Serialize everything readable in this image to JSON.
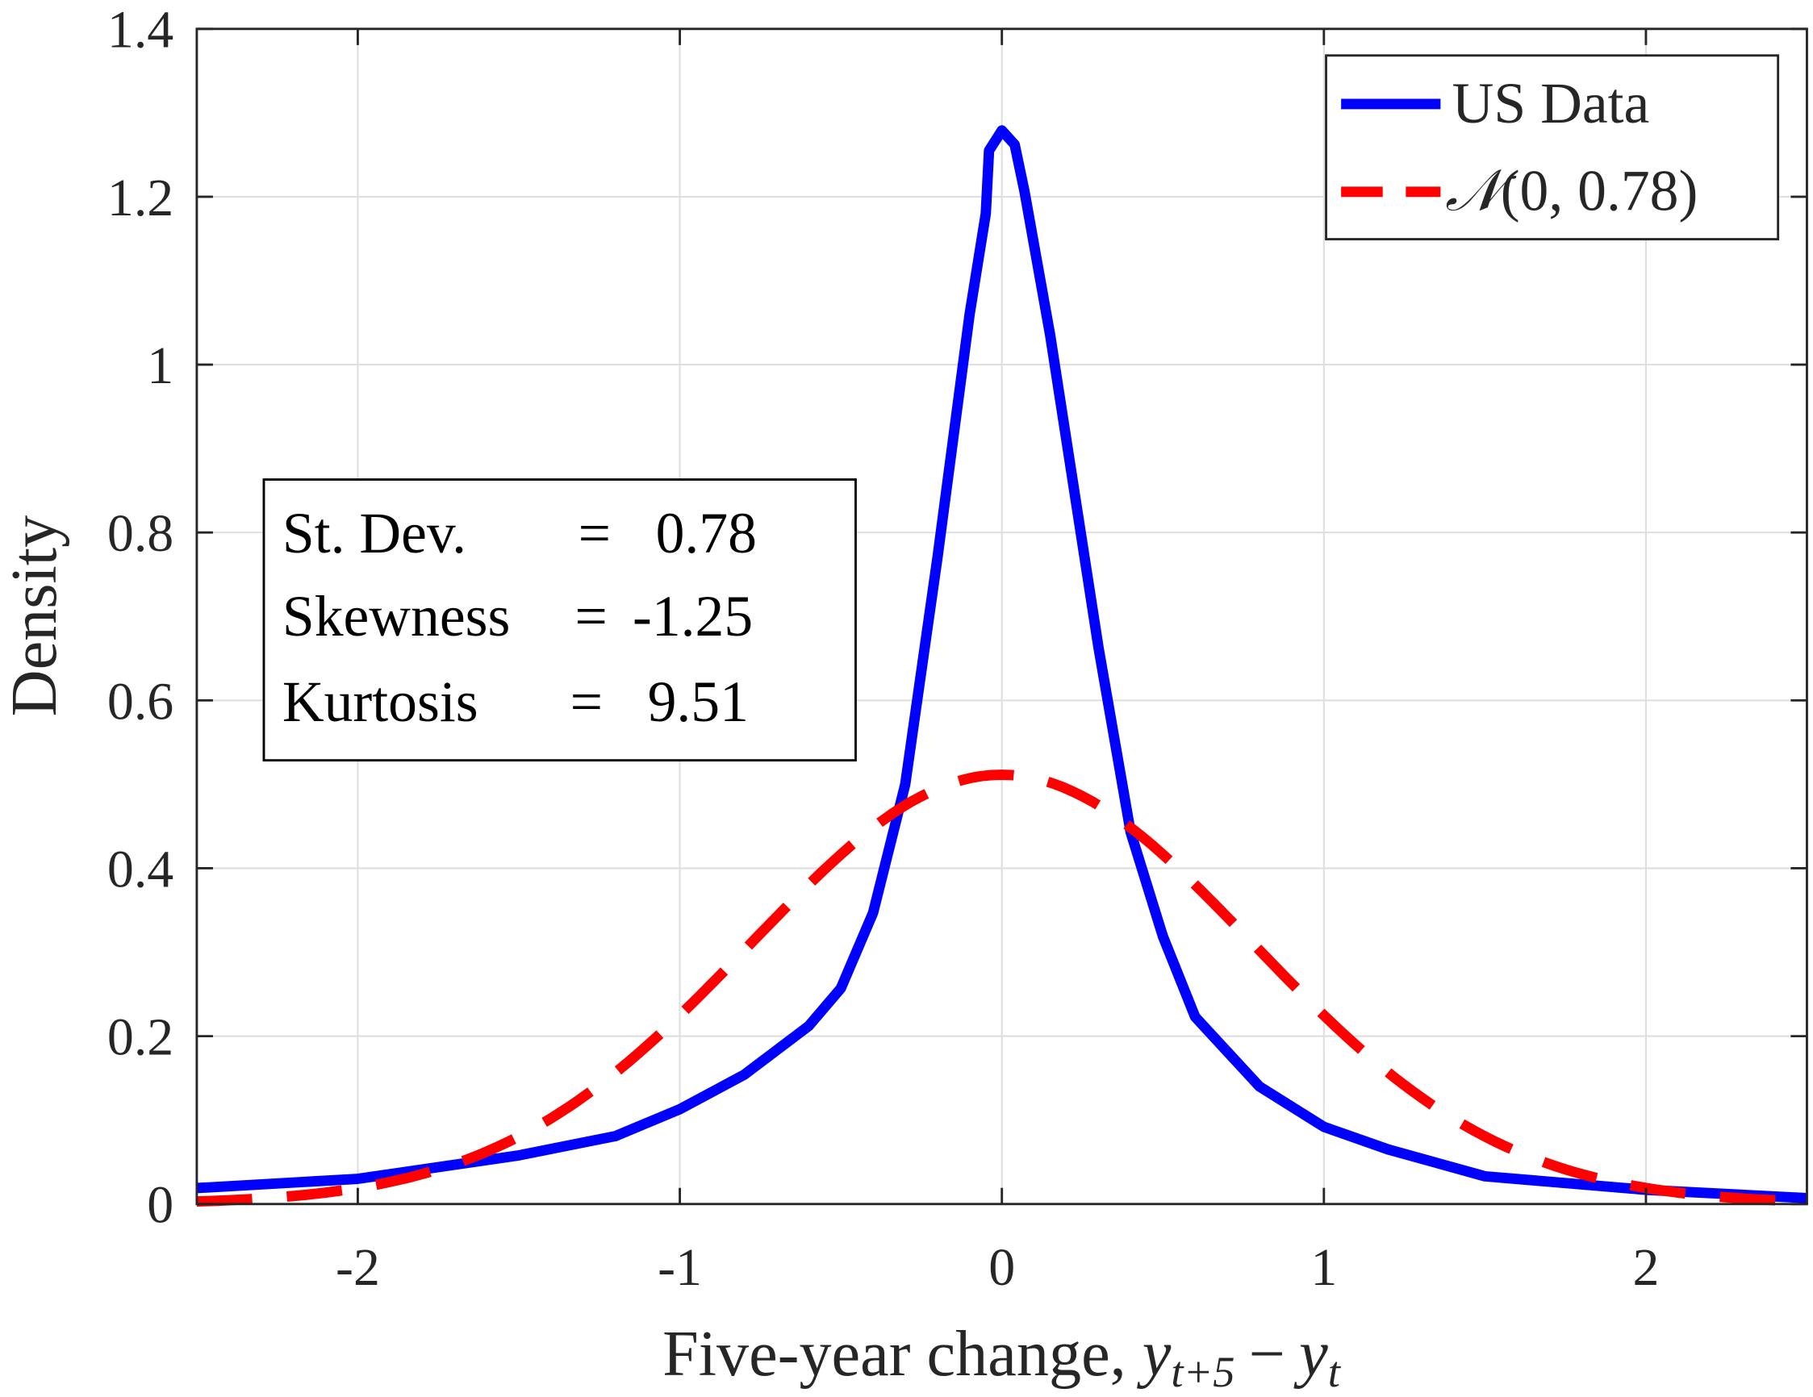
{
  "chart_data": {
    "type": "line",
    "title": "",
    "xlabel": "Five-year change, ",
    "xlabel_math": {
      "base": "y",
      "sub1": "t+5",
      "minus": "−",
      "base2": "y",
      "sub2": "t"
    },
    "ylabel": "Density",
    "xlim": [
      -2.5,
      2.5
    ],
    "ylim": [
      0,
      1.4
    ],
    "xticks": [
      -2,
      -1,
      0,
      1,
      2
    ],
    "xtick_labels": [
      "-2",
      "-1",
      "0",
      "1",
      "2"
    ],
    "yticks": [
      0,
      0.2,
      0.4,
      0.6,
      0.8,
      1,
      1.2,
      1.4
    ],
    "ytick_labels": [
      "0",
      "0.2",
      "0.4",
      "0.6",
      "0.8",
      "1",
      "1.2",
      "1.4"
    ],
    "grid": true,
    "legend_position": "top-right",
    "series": [
      {
        "name": "US Data",
        "color": "#0000ff",
        "style": "solid",
        "x": [
          -2.5,
          -2.0,
          -1.5,
          -1.2,
          -1.0,
          -0.8,
          -0.6,
          -0.5,
          -0.4,
          -0.3,
          -0.2,
          -0.1,
          -0.05,
          -0.04,
          0.0,
          0.04,
          0.07,
          0.15,
          0.3,
          0.4,
          0.5,
          0.6,
          0.8,
          1.0,
          1.2,
          1.5,
          2.0,
          2.5
        ],
        "y": [
          0.019,
          0.03,
          0.058,
          0.081,
          0.113,
          0.154,
          0.212,
          0.257,
          0.347,
          0.5,
          0.77,
          1.06,
          1.18,
          1.255,
          1.279,
          1.262,
          1.207,
          1.035,
          0.663,
          0.443,
          0.319,
          0.223,
          0.14,
          0.092,
          0.065,
          0.033,
          0.017,
          0.007
        ]
      },
      {
        "name": "N(0, 0.78)",
        "legend_label": {
          "script": "𝒩",
          "args": "(0, 0.78)"
        },
        "color": "#ff0000",
        "style": "dashed",
        "x": [
          -2.5,
          -2.25,
          -2.0,
          -1.75,
          -1.5,
          -1.25,
          -1.0,
          -0.75,
          -0.5,
          -0.25,
          0,
          0.25,
          0.5,
          0.75,
          1.0,
          1.25,
          1.5,
          1.75,
          2.0,
          2.25,
          2.5
        ],
        "y": [
          0.003,
          0.008,
          0.019,
          0.041,
          0.081,
          0.142,
          0.225,
          0.322,
          0.416,
          0.486,
          0.511,
          0.486,
          0.416,
          0.322,
          0.225,
          0.142,
          0.081,
          0.041,
          0.019,
          0.008,
          0.003
        ]
      }
    ],
    "annotation": {
      "rows": [
        {
          "label": "St. Dev.",
          "eq": "=",
          "value": "0.78"
        },
        {
          "label": "Skewness",
          "eq": "=",
          "value": "-1.25"
        },
        {
          "label": "Kurtosis",
          "eq": "=",
          "value": "9.51"
        }
      ]
    }
  }
}
